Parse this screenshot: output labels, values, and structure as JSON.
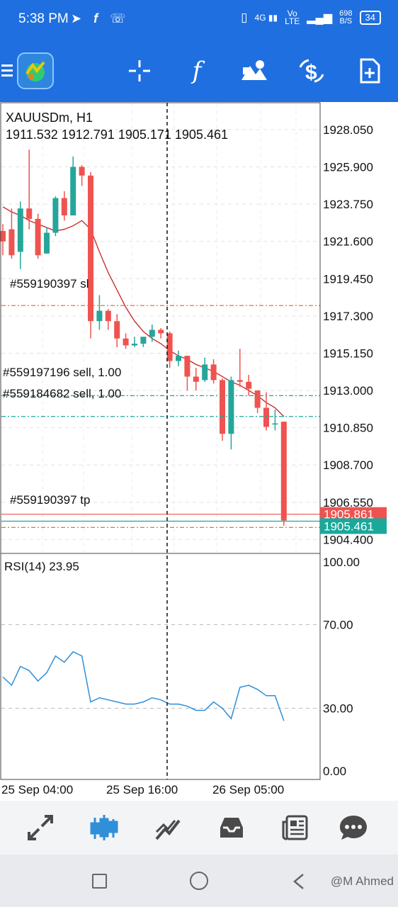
{
  "status": {
    "time": "5:38 PM",
    "left_icons": [
      "telegram-icon",
      "fb-icon",
      "call-wifi-icon"
    ],
    "right_icons": [
      "vibrate-icon",
      "4g-signal-icon",
      "volte-icon",
      "signal-icon"
    ],
    "net_speed_top": "698",
    "net_speed_bottom": "B/S",
    "battery": "34",
    "volte_top": "Vo",
    "volte_bottom": "LTE",
    "net_type": "4G"
  },
  "toolbar": {
    "buttons": [
      "menu-icon",
      "app-logo-icon",
      "crosshair-icon",
      "indicator-f-icon",
      "objects-icon",
      "symbol-dollar-icon",
      "new-order-icon"
    ],
    "f_label": "f"
  },
  "chart": {
    "symbol": "XAUUSDm, H1",
    "ohlc": "1911.532 1912.791 1905.171 1905.461",
    "price_ticks": [
      "1928.050",
      "1925.900",
      "1923.750",
      "1921.600",
      "1919.450",
      "1917.300",
      "1915.150",
      "1913.000",
      "1910.850",
      "1908.700",
      "1906.550",
      "1904.400"
    ],
    "bid_label": "1905.861",
    "current_label": "1905.461",
    "order_labels": {
      "sl": "#559190397 sl",
      "sell1": "#559197196 sell, 1.00",
      "sell2": "#559184682 sell, 1.00",
      "tp": "#559190397 tp"
    },
    "rsi_label": "RSI(14) 23.95",
    "rsi_ticks": [
      "100.00",
      "70.00",
      "30.00",
      "0.00"
    ],
    "time_ticks": [
      "25 Sep 04:00",
      "25 Sep 16:00",
      "26 Sep 05:00"
    ],
    "colors": {
      "bull": "#26a69a",
      "bear": "#ef5350",
      "ma": "#cc2222",
      "rsi": "#2f8fd8",
      "order_sl": "#e0622e",
      "order_sell": "#1aa89b"
    }
  },
  "chart_data": {
    "type": "candlestick",
    "title": "XAUUSDm, H1",
    "candles": [
      {
        "o": 1922.2,
        "h": 1922.6,
        "c": 1921.6,
        "l": 1920.8
      },
      {
        "o": 1922.3,
        "h": 1923.5,
        "c": 1920.8,
        "l": 1920.6
      },
      {
        "o": 1921.0,
        "h": 1923.9,
        "c": 1923.5,
        "l": 1920.0
      },
      {
        "o": 1923.5,
        "h": 1926.9,
        "c": 1922.9,
        "l": 1922.3
      },
      {
        "o": 1922.9,
        "h": 1923.2,
        "c": 1920.8,
        "l": 1920.6
      },
      {
        "o": 1920.9,
        "h": 1922.4,
        "c": 1922.1,
        "l": 1920.9
      },
      {
        "o": 1922.1,
        "h": 1924.2,
        "c": 1924.1,
        "l": 1921.9
      },
      {
        "o": 1924.1,
        "h": 1924.5,
        "c": 1923.1,
        "l": 1922.8
      },
      {
        "o": 1923.1,
        "h": 1926.5,
        "c": 1925.9,
        "l": 1923.1
      },
      {
        "o": 1925.9,
        "h": 1926.0,
        "c": 1925.4,
        "l": 1924.8
      },
      {
        "o": 1925.4,
        "h": 1925.6,
        "c": 1917.0,
        "l": 1916.0
      },
      {
        "o": 1917.0,
        "h": 1918.5,
        "c": 1917.6,
        "l": 1916.5
      },
      {
        "o": 1917.6,
        "h": 1917.7,
        "c": 1917.0,
        "l": 1916.5
      },
      {
        "o": 1917.0,
        "h": 1917.4,
        "c": 1916.0,
        "l": 1915.5
      },
      {
        "o": 1916.0,
        "h": 1916.3,
        "c": 1915.6,
        "l": 1915.4
      },
      {
        "o": 1915.6,
        "h": 1916.1,
        "c": 1915.7,
        "l": 1915.5
      },
      {
        "o": 1915.7,
        "h": 1916.0,
        "c": 1916.1,
        "l": 1915.5
      },
      {
        "o": 1916.1,
        "h": 1916.8,
        "c": 1916.5,
        "l": 1915.8
      },
      {
        "o": 1916.5,
        "h": 1916.6,
        "c": 1916.3,
        "l": 1916.0
      },
      {
        "o": 1916.3,
        "h": 1916.4,
        "c": 1914.7,
        "l": 1914.3
      },
      {
        "o": 1914.7,
        "h": 1915.3,
        "c": 1915.0,
        "l": 1914.4
      },
      {
        "o": 1915.0,
        "h": 1915.0,
        "c": 1913.8,
        "l": 1913.0
      },
      {
        "o": 1913.8,
        "h": 1914.3,
        "c": 1913.5,
        "l": 1913.0
      },
      {
        "o": 1913.6,
        "h": 1914.9,
        "c": 1914.5,
        "l": 1913.5
      },
      {
        "o": 1914.5,
        "h": 1914.8,
        "c": 1913.6,
        "l": 1913.4
      },
      {
        "o": 1913.6,
        "h": 1913.7,
        "c": 1910.5,
        "l": 1910.1
      },
      {
        "o": 1910.5,
        "h": 1913.8,
        "c": 1913.6,
        "l": 1909.6
      },
      {
        "o": 1913.6,
        "h": 1915.4,
        "c": 1913.5,
        "l": 1913.2
      },
      {
        "o": 1913.5,
        "h": 1913.9,
        "c": 1913.1,
        "l": 1912.7
      },
      {
        "o": 1913.0,
        "h": 1913.0,
        "c": 1912.0,
        "l": 1911.7
      },
      {
        "o": 1912.0,
        "h": 1912.9,
        "c": 1910.9,
        "l": 1910.7
      },
      {
        "o": 1911.1,
        "h": 1911.9,
        "c": 1911.1,
        "l": 1910.7
      },
      {
        "o": 1911.2,
        "h": 1911.2,
        "c": 1905.5,
        "l": 1905.2
      }
    ],
    "ma": [
      1923.6,
      1923.3,
      1923.1,
      1922.8,
      1922.6,
      1922.4,
      1922.2,
      1922.3,
      1922.5,
      1922.8,
      1922.3,
      1921.0,
      1919.8,
      1918.8,
      1917.8,
      1917.0,
      1916.4,
      1916.0,
      1915.7,
      1915.3,
      1915.0,
      1914.8,
      1914.5,
      1914.3,
      1914.1,
      1913.8,
      1913.5,
      1913.3,
      1913.0,
      1912.7,
      1912.3,
      1912.0,
      1911.5
    ],
    "rsi": [
      45,
      41,
      50,
      48,
      43,
      47,
      55,
      52,
      57,
      55,
      33,
      35,
      34,
      33,
      32,
      32,
      33,
      35,
      34,
      32,
      32,
      31,
      29,
      29,
      33,
      30,
      25,
      40,
      41,
      39,
      36,
      36,
      24
    ],
    "price_range": [
      1903.6,
      1929.6
    ],
    "rsi_range": [
      0,
      100
    ],
    "levels": {
      "sl": 1917.9,
      "sell1": 1912.7,
      "sell2": 1911.5,
      "tp": 1905.1,
      "bid": 1905.861,
      "current": 1905.461
    },
    "grid": true
  },
  "bottom_nav": [
    "quotes-icon",
    "chart-candles-icon",
    "trade-icon",
    "history-icon",
    "news-icon",
    "messages-icon"
  ],
  "system_nav": [
    "recent-apps-icon",
    "home-icon",
    "back-icon"
  ],
  "watermark": "@M Ahmed"
}
